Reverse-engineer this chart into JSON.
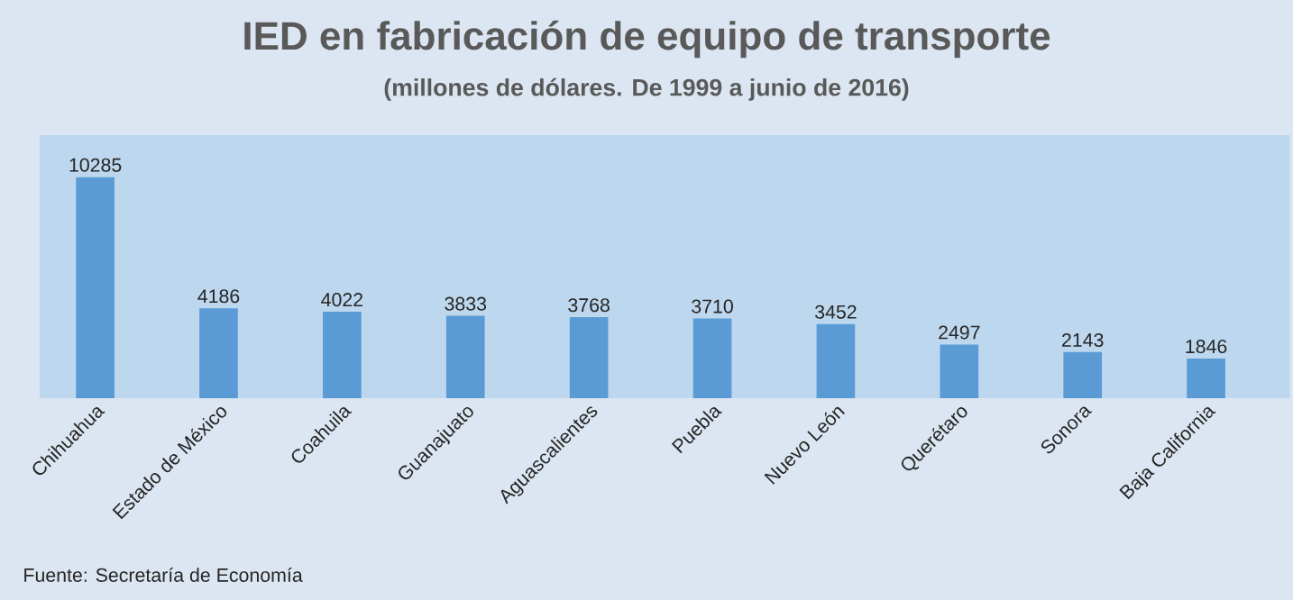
{
  "chart_data": {
    "type": "bar",
    "title": "IED en fabricación de equipo de transporte",
    "subtitle": "(millones de dólares. De 1999 a junio de 2016)",
    "categories": [
      "Chihuahua",
      "Estado de México",
      "Coahuila",
      "Guanajuato",
      "Aguascalientes",
      "Puebla",
      "Nuevo León",
      "Querétaro",
      "Sonora",
      "Baja California"
    ],
    "values": [
      10285,
      4186,
      4022,
      3833,
      3768,
      3710,
      3452,
      2497,
      2143,
      1846
    ],
    "color": "#5b9bd5",
    "data_labels": true,
    "annotations": [
      "Fuente: Secretaría de Economía"
    ]
  }
}
